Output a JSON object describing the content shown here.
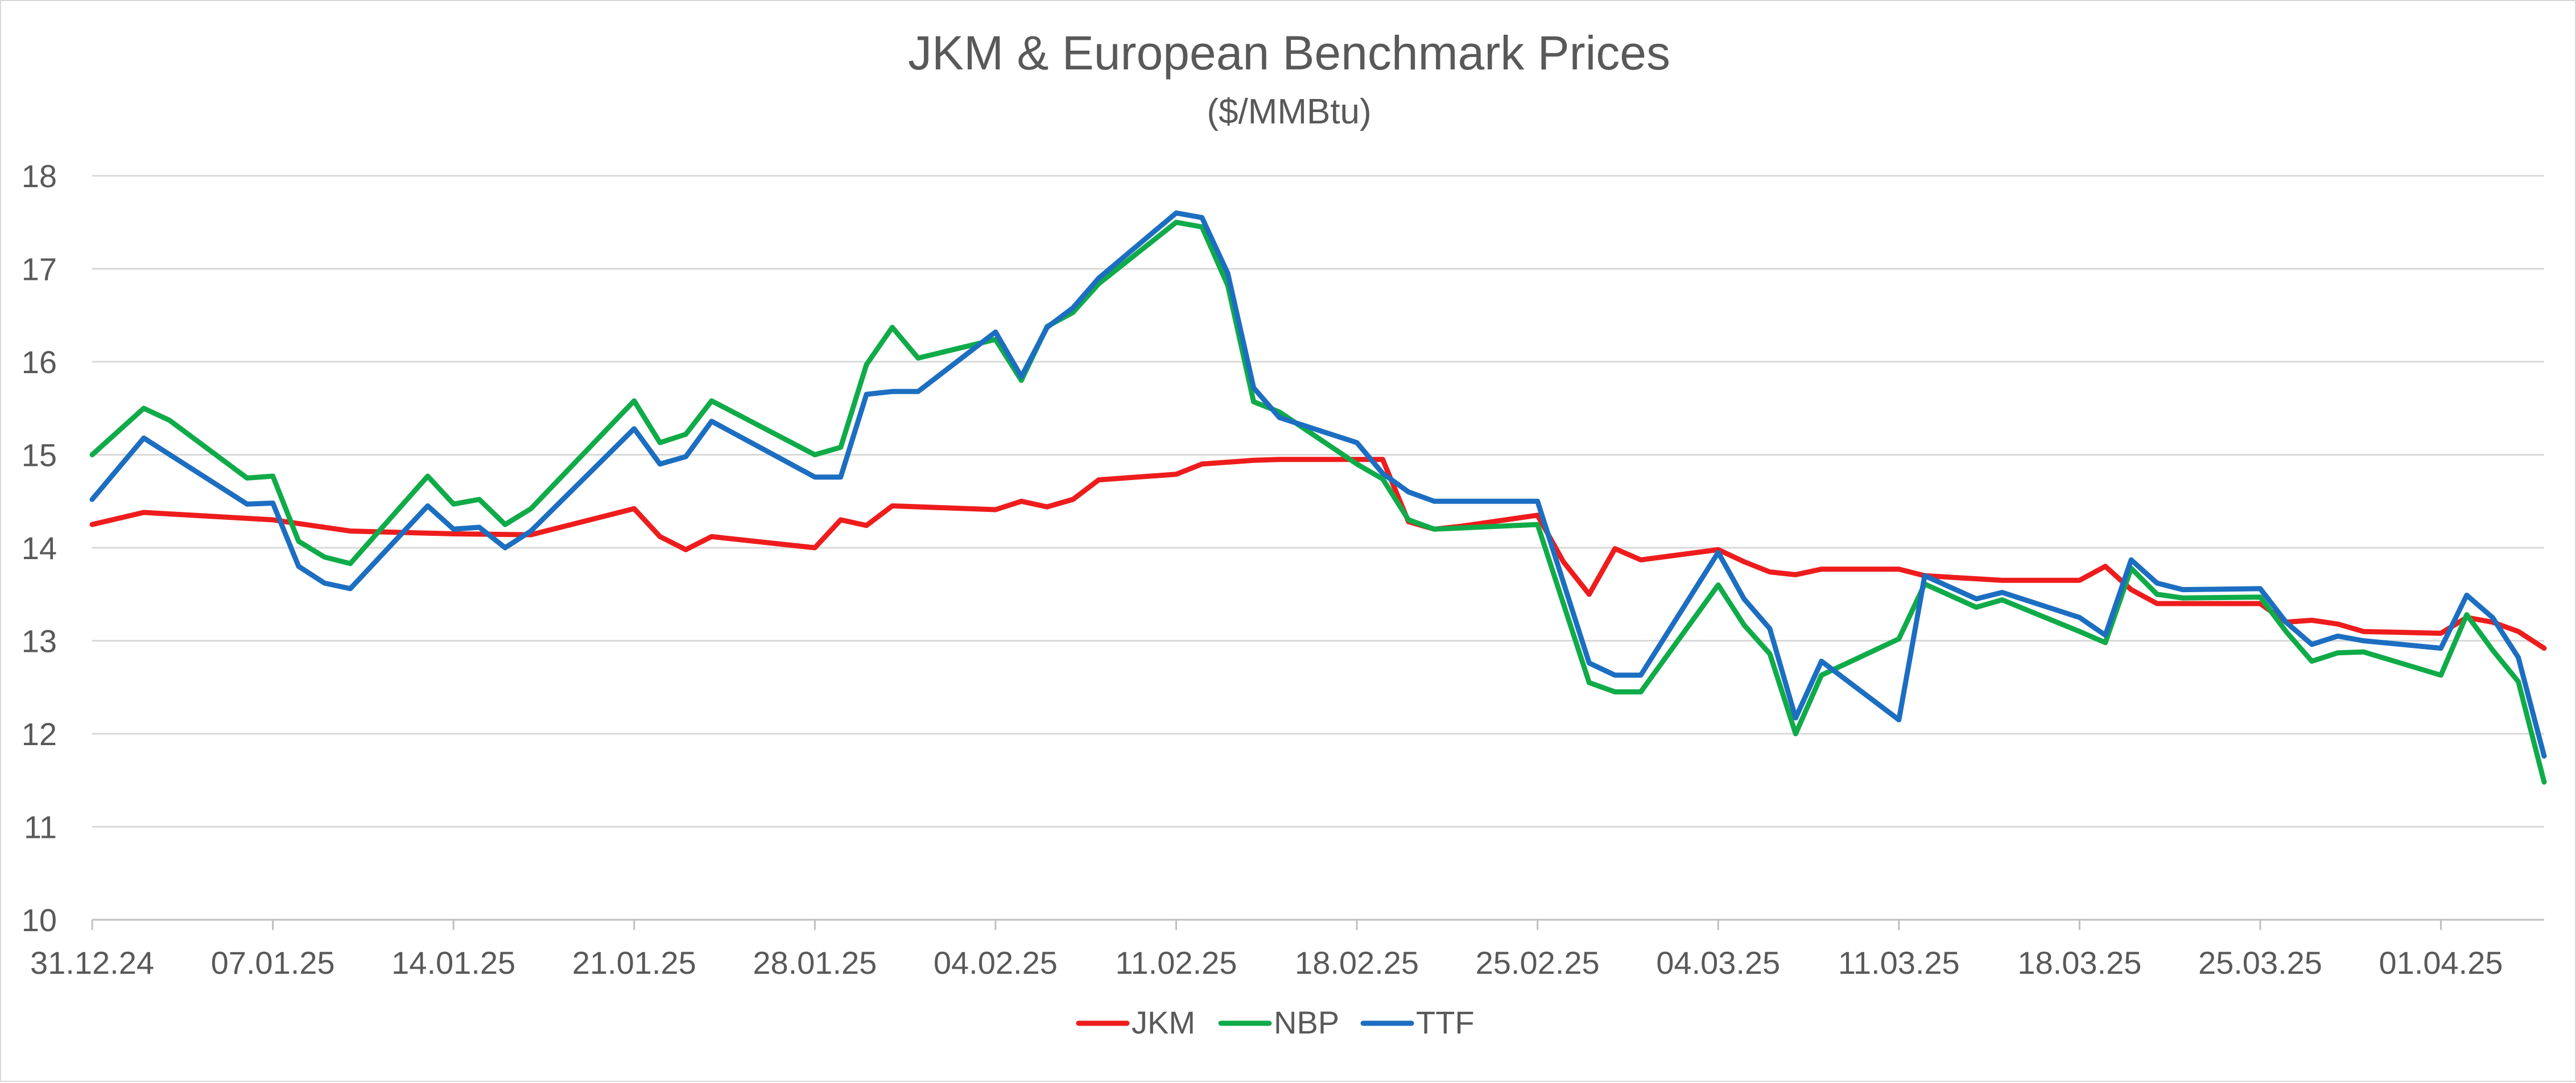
{
  "chart_data": {
    "type": "line",
    "title": "JKM & European Benchmark Prices",
    "subtitle": "($/MMBtu)",
    "xlabel": "",
    "ylabel": "",
    "ylim": [
      10,
      18
    ],
    "yticks": [
      10,
      11,
      12,
      13,
      14,
      15,
      16,
      17,
      18
    ],
    "grid": true,
    "legend_position": "bottom-center",
    "x_start": "31.12.24",
    "x_end": "04.04.25",
    "x_tick_labels": [
      "31.12.24",
      "07.01.25",
      "14.01.25",
      "21.01.25",
      "28.01.25",
      "04.02.25",
      "11.02.25",
      "18.02.25",
      "25.02.25",
      "04.03.25",
      "11.03.25",
      "18.03.25",
      "25.03.25",
      "01.04.25"
    ],
    "x_tick_days": [
      0,
      7,
      14,
      21,
      28,
      35,
      42,
      49,
      56,
      63,
      70,
      77,
      84,
      91
    ],
    "series": [
      {
        "name": "JKM",
        "color": "#ee1c1c",
        "points": [
          [
            0,
            14.25
          ],
          [
            2,
            14.38
          ],
          [
            7,
            14.3
          ],
          [
            10,
            14.18
          ],
          [
            14,
            14.15
          ],
          [
            17,
            14.14
          ],
          [
            21,
            14.42
          ],
          [
            22,
            14.12
          ],
          [
            23,
            13.98
          ],
          [
            24,
            14.12
          ],
          [
            28,
            14.0
          ],
          [
            29,
            14.3
          ],
          [
            30,
            14.24
          ],
          [
            31,
            14.45
          ],
          [
            35,
            14.41
          ],
          [
            36,
            14.5
          ],
          [
            37,
            14.44
          ],
          [
            38,
            14.52
          ],
          [
            39,
            14.73
          ],
          [
            42,
            14.79
          ],
          [
            43,
            14.9
          ],
          [
            45,
            14.94
          ],
          [
            46,
            14.95
          ],
          [
            49,
            14.95
          ],
          [
            50,
            14.95
          ],
          [
            51,
            14.28
          ],
          [
            52,
            14.2
          ],
          [
            53,
            14.23
          ],
          [
            56,
            14.35
          ],
          [
            57,
            13.85
          ],
          [
            58,
            13.5
          ],
          [
            59,
            13.99
          ],
          [
            60,
            13.87
          ],
          [
            63,
            13.98
          ],
          [
            64,
            13.85
          ],
          [
            65,
            13.74
          ],
          [
            66,
            13.71
          ],
          [
            67,
            13.77
          ],
          [
            70,
            13.77
          ],
          [
            71,
            13.7
          ],
          [
            74,
            13.65
          ],
          [
            77,
            13.65
          ],
          [
            78,
            13.8
          ],
          [
            79,
            13.55
          ],
          [
            80,
            13.4
          ],
          [
            84,
            13.4
          ],
          [
            85,
            13.2
          ],
          [
            86,
            13.22
          ],
          [
            87,
            13.18
          ],
          [
            88,
            13.1
          ],
          [
            91,
            13.08
          ],
          [
            92,
            13.25
          ],
          [
            93,
            13.2
          ],
          [
            94,
            13.1
          ],
          [
            95,
            12.92
          ]
        ]
      },
      {
        "name": "NBP",
        "color": "#10ab49",
        "points": [
          [
            0,
            15.0
          ],
          [
            2,
            15.5
          ],
          [
            3,
            15.37
          ],
          [
            6,
            14.75
          ],
          [
            7,
            14.77
          ],
          [
            8,
            14.07
          ],
          [
            9,
            13.9
          ],
          [
            10,
            13.83
          ],
          [
            13,
            14.77
          ],
          [
            14,
            14.47
          ],
          [
            15,
            14.52
          ],
          [
            16,
            14.25
          ],
          [
            17,
            14.42
          ],
          [
            21,
            15.58
          ],
          [
            22,
            15.13
          ],
          [
            23,
            15.22
          ],
          [
            24,
            15.58
          ],
          [
            28,
            15.0
          ],
          [
            29,
            15.08
          ],
          [
            30,
            15.97
          ],
          [
            31,
            16.37
          ],
          [
            32,
            16.04
          ],
          [
            35,
            16.24
          ],
          [
            36,
            15.8
          ],
          [
            37,
            16.38
          ],
          [
            38,
            16.53
          ],
          [
            39,
            16.84
          ],
          [
            42,
            17.5
          ],
          [
            43,
            17.45
          ],
          [
            44,
            16.82
          ],
          [
            45,
            15.57
          ],
          [
            46,
            15.46
          ],
          [
            49,
            14.9
          ],
          [
            50,
            14.74
          ],
          [
            51,
            14.3
          ],
          [
            52,
            14.2
          ],
          [
            56,
            14.25
          ],
          [
            58,
            12.55
          ],
          [
            59,
            12.45
          ],
          [
            60,
            12.45
          ],
          [
            63,
            13.6
          ],
          [
            64,
            13.17
          ],
          [
            65,
            12.86
          ],
          [
            66,
            12.0
          ],
          [
            67,
            12.63
          ],
          [
            70,
            13.02
          ],
          [
            71,
            13.61
          ],
          [
            73,
            13.36
          ],
          [
            74,
            13.44
          ],
          [
            77,
            13.1
          ],
          [
            78,
            12.98
          ],
          [
            79,
            13.78
          ],
          [
            80,
            13.5
          ],
          [
            81,
            13.46
          ],
          [
            84,
            13.47
          ],
          [
            85,
            13.1
          ],
          [
            86,
            12.78
          ],
          [
            87,
            12.87
          ],
          [
            88,
            12.88
          ],
          [
            91,
            12.63
          ],
          [
            92,
            13.28
          ],
          [
            93,
            12.9
          ],
          [
            94,
            12.56
          ],
          [
            95,
            11.48
          ]
        ]
      },
      {
        "name": "TTF",
        "color": "#1c6ec1",
        "points": [
          [
            0,
            14.52
          ],
          [
            2,
            15.18
          ],
          [
            6,
            14.47
          ],
          [
            7,
            14.48
          ],
          [
            8,
            13.8
          ],
          [
            9,
            13.62
          ],
          [
            10,
            13.56
          ],
          [
            13,
            14.45
          ],
          [
            14,
            14.2
          ],
          [
            15,
            14.22
          ],
          [
            16,
            14.0
          ],
          [
            17,
            14.18
          ],
          [
            21,
            15.28
          ],
          [
            22,
            14.9
          ],
          [
            23,
            14.98
          ],
          [
            24,
            15.36
          ],
          [
            28,
            14.76
          ],
          [
            29,
            14.76
          ],
          [
            30,
            15.65
          ],
          [
            31,
            15.68
          ],
          [
            32,
            15.68
          ],
          [
            35,
            16.32
          ],
          [
            36,
            15.84
          ],
          [
            37,
            16.37
          ],
          [
            38,
            16.58
          ],
          [
            39,
            16.9
          ],
          [
            42,
            17.6
          ],
          [
            43,
            17.55
          ],
          [
            44,
            16.95
          ],
          [
            45,
            15.72
          ],
          [
            46,
            15.4
          ],
          [
            49,
            15.13
          ],
          [
            50,
            14.8
          ],
          [
            51,
            14.6
          ],
          [
            52,
            14.5
          ],
          [
            56,
            14.5
          ],
          [
            58,
            12.76
          ],
          [
            59,
            12.63
          ],
          [
            60,
            12.63
          ],
          [
            63,
            13.95
          ],
          [
            64,
            13.45
          ],
          [
            65,
            13.13
          ],
          [
            66,
            12.17
          ],
          [
            67,
            12.78
          ],
          [
            70,
            12.15
          ],
          [
            71,
            13.7
          ],
          [
            73,
            13.45
          ],
          [
            74,
            13.52
          ],
          [
            77,
            13.25
          ],
          [
            78,
            13.06
          ],
          [
            79,
            13.87
          ],
          [
            80,
            13.62
          ],
          [
            81,
            13.55
          ],
          [
            84,
            13.56
          ],
          [
            85,
            13.2
          ],
          [
            86,
            12.96
          ],
          [
            87,
            13.05
          ],
          [
            88,
            13.0
          ],
          [
            91,
            12.92
          ],
          [
            92,
            13.49
          ],
          [
            93,
            13.25
          ],
          [
            94,
            12.82
          ],
          [
            95,
            11.76
          ]
        ]
      }
    ]
  }
}
